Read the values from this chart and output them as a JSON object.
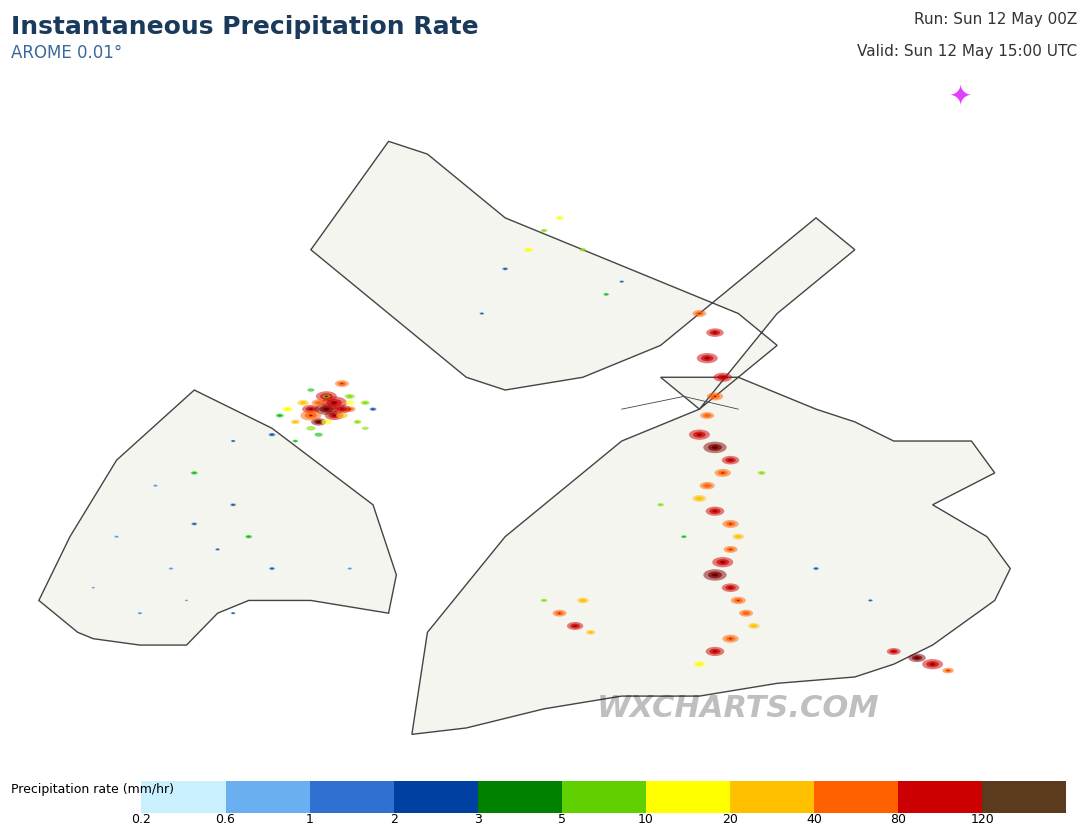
{
  "title": "Instantaneous Precipitation Rate",
  "subtitle": "AROME 0.01°",
  "run_text": "Run: Sun 12 May 00Z",
  "valid_text": "Valid: Sun 12 May 15:00 UTC",
  "watermark": "WXCHARTS.COM",
  "colorbar_label": "Precipitation rate (mm/hr)",
  "colorbar_ticks": [
    0.2,
    0.6,
    1,
    2,
    3,
    5,
    10,
    20,
    40,
    80,
    120
  ],
  "colorbar_colors": [
    "#b3f0ff",
    "#7ecfff",
    "#4da6ff",
    "#2060d0",
    "#00c000",
    "#80e000",
    "#ffff00",
    "#ffd000",
    "#ff8000",
    "#ff4000",
    "#dd0000",
    "#a00000",
    "#700000",
    "#5c3a1e",
    "#a07040"
  ],
  "title_color": "#1a3a5c",
  "subtitle_color": "#3a6a9c",
  "run_valid_color": "#333333",
  "bg_color": "#ffffff",
  "map_bg": "#ffffff",
  "sea_color": "#d0e8f8",
  "land_color": "#f5f5f0",
  "border_color": "#444444",
  "metdesk_bg": "#1e1040",
  "fig_width": 10.88,
  "fig_height": 8.35
}
